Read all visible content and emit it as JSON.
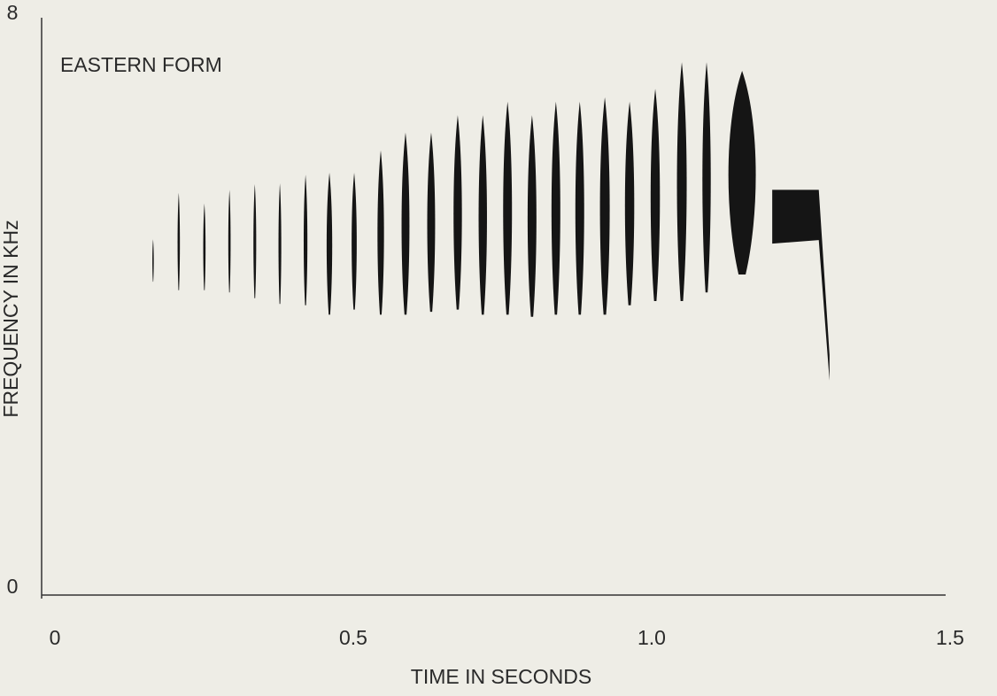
{
  "chart_data": {
    "type": "spectrogram",
    "title": "EASTERN FORM",
    "x_label": "TIME IN SECONDS",
    "y_label": "FREQUENCY IN KHz",
    "xlim": [
      0,
      1.5
    ],
    "ylim": [
      0,
      8
    ],
    "xticks": [
      0,
      0.5,
      {
        "value": 1,
        "label": "1.0"
      },
      1.5
    ],
    "yticks": [
      0,
      8
    ],
    "color": "#151515",
    "notes": {
      "start": [
        0.163,
        0.205,
        0.248,
        0.29,
        0.332,
        0.374,
        0.416,
        0.454,
        0.496,
        0.539,
        0.579,
        0.622,
        0.666,
        0.708,
        0.749,
        0.79,
        0.83,
        0.87,
        0.911,
        0.953,
        0.996,
        1.04,
        1.083,
        1.122
      ],
      "end": [
        0.166,
        0.21,
        0.253,
        0.295,
        0.338,
        0.38,
        0.424,
        0.466,
        0.507,
        0.553,
        0.596,
        0.639,
        0.684,
        0.726,
        0.768,
        0.809,
        0.849,
        0.889,
        0.932,
        0.973,
        1.016,
        1.061,
        1.101,
        1.181
      ],
      "low": [
        4.32,
        4.2,
        4.2,
        4.17,
        4.09,
        4.01,
        3.99,
        3.86,
        3.93,
        3.86,
        3.86,
        3.9,
        3.93,
        3.86,
        3.86,
        3.83,
        3.86,
        3.86,
        3.86,
        3.99,
        4.05,
        4.05,
        4.17,
        4.42
      ],
      "high": [
        4.91,
        5.56,
        5.41,
        5.6,
        5.68,
        5.69,
        5.81,
        5.84,
        5.84,
        6.15,
        6.4,
        6.4,
        6.64,
        6.64,
        6.83,
        6.64,
        6.83,
        6.83,
        6.89,
        6.83,
        7.01,
        7.38,
        7.38,
        7.26
      ]
    },
    "sweep": {
      "x": [
        1.202,
        1.28,
        1.298
      ],
      "high": [
        5.6,
        5.6,
        3.3
      ],
      "low": [
        4.85,
        4.9,
        2.94
      ]
    }
  }
}
